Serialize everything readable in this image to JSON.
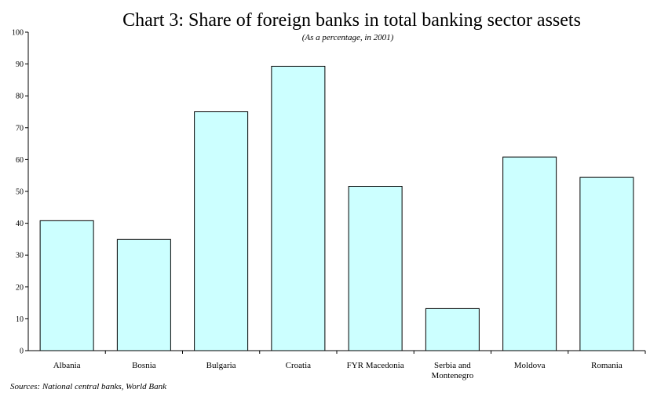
{
  "chart_data": {
    "type": "bar",
    "title": "Chart 3: Share of foreign banks in total banking sector assets",
    "subtitle": "(As a percentage, in 2001)",
    "xlabel": "",
    "ylabel": "",
    "categories": [
      "Albania",
      "Bosnia",
      "Bulgaria",
      "Croatia",
      "FYR Macedonia",
      "Serbia and Montenegro",
      "Moldova",
      "Romania"
    ],
    "category_label_lines": [
      [
        "Albania"
      ],
      [
        "Bosnia"
      ],
      [
        "Bulgaria"
      ],
      [
        "Croatia"
      ],
      [
        "FYR Macedonia"
      ],
      [
        "Serbia and",
        "Montenegro"
      ],
      [
        "Moldova"
      ],
      [
        "Romania"
      ]
    ],
    "values": [
      40.8,
      34.9,
      75.0,
      89.3,
      51.6,
      13.2,
      60.8,
      54.4
    ],
    "ylim": [
      0,
      100
    ],
    "yticks": [
      0,
      10,
      20,
      30,
      40,
      50,
      60,
      70,
      80,
      90,
      100
    ],
    "grid": false,
    "legend": "none",
    "bar_color": "#ccffff",
    "bar_edge_color": "#000000"
  },
  "footer": {
    "source": "Sources: National central banks, World Bank"
  }
}
